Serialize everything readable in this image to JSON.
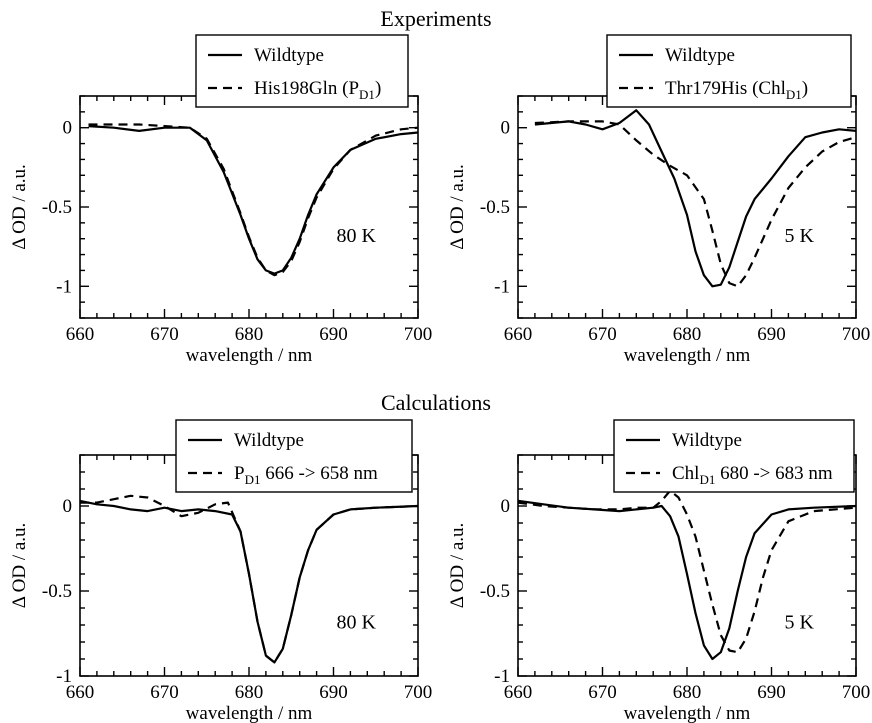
{
  "figure": {
    "section_titles": [
      "Experiments",
      "Calculations"
    ]
  },
  "chart_data": [
    {
      "type": "line",
      "panel": "top-left",
      "xlabel": "wavelength / nm",
      "ylabel": "Δ OD / a.u.",
      "xlim": [
        660,
        700
      ],
      "ylim": [
        -1.2,
        0.2
      ],
      "xticks": [
        660,
        670,
        680,
        690,
        700
      ],
      "yticks": [
        0,
        -0.5,
        -1
      ],
      "ytick_labels": [
        "0",
        "-0.5",
        "-1"
      ],
      "annotation": "80 K",
      "legend_position": "top-center",
      "series": [
        {
          "name": "Wildtype",
          "style": "solid",
          "x": [
            661,
            664,
            667,
            670,
            673,
            675,
            677,
            679,
            680,
            681,
            682,
            683,
            684,
            685,
            686,
            687,
            688,
            690,
            692,
            695,
            698,
            700
          ],
          "y": [
            0.01,
            0.0,
            -0.02,
            0.0,
            0.0,
            -0.08,
            -0.28,
            -0.55,
            -0.7,
            -0.83,
            -0.9,
            -0.92,
            -0.9,
            -0.82,
            -0.7,
            -0.55,
            -0.42,
            -0.25,
            -0.14,
            -0.07,
            -0.04,
            -0.03
          ]
        },
        {
          "name": "His198Gln (P",
          "name_sub": "D1",
          "name_suffix": ")",
          "style": "dashed",
          "x": [
            661,
            664,
            667,
            670,
            673,
            675,
            677,
            679,
            680,
            681,
            682,
            683,
            684,
            685,
            686,
            687,
            688,
            690,
            692,
            695,
            698,
            700
          ],
          "y": [
            0.02,
            0.02,
            0.02,
            0.01,
            0.0,
            -0.07,
            -0.26,
            -0.54,
            -0.69,
            -0.82,
            -0.9,
            -0.93,
            -0.91,
            -0.84,
            -0.72,
            -0.57,
            -0.44,
            -0.26,
            -0.14,
            -0.05,
            -0.01,
            0.0
          ]
        }
      ]
    },
    {
      "type": "line",
      "panel": "top-right",
      "xlabel": "wavelength / nm",
      "ylabel": "Δ OD / a.u.",
      "xlim": [
        660,
        700
      ],
      "ylim": [
        -1.2,
        0.2
      ],
      "xticks": [
        660,
        670,
        680,
        690,
        700
      ],
      "yticks": [
        0,
        -0.5,
        -1
      ],
      "ytick_labels": [
        "0",
        "-0.5",
        "-1"
      ],
      "annotation": "5 K",
      "legend_position": "top-center",
      "series": [
        {
          "name": "Wildtype",
          "style": "solid",
          "x": [
            662,
            666,
            668,
            670,
            672,
            674,
            675.5,
            677,
            678.5,
            680,
            681,
            682,
            683,
            684,
            685,
            686,
            687,
            688,
            690,
            692,
            694,
            696,
            698,
            700
          ],
          "y": [
            0.02,
            0.04,
            0.02,
            -0.01,
            0.03,
            0.11,
            0.02,
            -0.15,
            -0.32,
            -0.55,
            -0.78,
            -0.93,
            -1.0,
            -0.99,
            -0.88,
            -0.72,
            -0.56,
            -0.45,
            -0.32,
            -0.18,
            -0.06,
            -0.03,
            -0.01,
            -0.02
          ]
        },
        {
          "name": "Thr179His (Chl",
          "name_sub": "D1",
          "name_suffix": ")",
          "style": "dashed",
          "x": [
            662,
            666,
            670,
            672,
            674,
            676,
            678,
            680,
            682,
            683,
            684,
            685,
            686,
            687,
            688,
            690,
            692,
            694,
            696,
            698,
            700
          ],
          "y": [
            0.03,
            0.04,
            0.04,
            0.02,
            -0.08,
            -0.17,
            -0.24,
            -0.3,
            -0.45,
            -0.65,
            -0.86,
            -0.98,
            -1.0,
            -0.93,
            -0.82,
            -0.58,
            -0.38,
            -0.25,
            -0.15,
            -0.09,
            -0.06
          ]
        }
      ]
    },
    {
      "type": "line",
      "panel": "bottom-left",
      "xlabel": "wavelength / nm",
      "ylabel": "Δ OD / a.u.",
      "xlim": [
        660,
        700
      ],
      "ylim": [
        -1.0,
        0.3
      ],
      "xticks": [
        660,
        670,
        680,
        690,
        700
      ],
      "yticks": [
        0,
        -0.5,
        -1
      ],
      "ytick_labels": [
        "0",
        "-0.5",
        "-1"
      ],
      "annotation": "80 K",
      "legend_position": "top-right",
      "series": [
        {
          "name": "Wildtype",
          "style": "solid",
          "x": [
            660,
            662,
            664,
            666,
            668,
            670,
            672,
            674,
            676,
            678,
            679,
            680,
            681,
            682,
            683,
            684,
            685,
            686,
            687,
            688,
            690,
            692,
            695,
            700
          ],
          "y": [
            0.03,
            0.01,
            0.0,
            -0.02,
            -0.03,
            -0.01,
            -0.03,
            -0.02,
            -0.03,
            -0.05,
            -0.15,
            -0.4,
            -0.68,
            -0.88,
            -0.92,
            -0.84,
            -0.64,
            -0.42,
            -0.26,
            -0.14,
            -0.05,
            -0.02,
            -0.01,
            0.0
          ]
        },
        {
          "name": "P",
          "name_sub": "D1",
          "name_suffix": "  666 -> 658 nm",
          "style": "dashed",
          "x": [
            660,
            662,
            664,
            666,
            668,
            670,
            672,
            674,
            676,
            677.5,
            679,
            680,
            681,
            682,
            683,
            684,
            685,
            686,
            687,
            688,
            690,
            692,
            695,
            700
          ],
          "y": [
            0.02,
            0.02,
            0.04,
            0.06,
            0.05,
            0.0,
            -0.06,
            -0.04,
            0.01,
            0.02,
            -0.15,
            -0.4,
            -0.68,
            -0.88,
            -0.92,
            -0.84,
            -0.64,
            -0.42,
            -0.26,
            -0.14,
            -0.05,
            -0.02,
            -0.01,
            0.0
          ]
        }
      ]
    },
    {
      "type": "line",
      "panel": "bottom-right",
      "xlabel": "wavelength / nm",
      "ylabel": "Δ OD / a.u.",
      "xlim": [
        660,
        700
      ],
      "ylim": [
        -1.0,
        0.3
      ],
      "xticks": [
        660,
        670,
        680,
        690,
        700
      ],
      "yticks": [
        0,
        -0.5,
        -1
      ],
      "ytick_labels": [
        "0",
        "-0.5",
        "-1"
      ],
      "annotation": "5 K",
      "legend_position": "top-right",
      "series": [
        {
          "name": "Wildtype",
          "style": "solid",
          "x": [
            660,
            663,
            666,
            669,
            672,
            674,
            676,
            677,
            678,
            679,
            680,
            681,
            682,
            683,
            684,
            685,
            686,
            687,
            688,
            690,
            692,
            695,
            700
          ],
          "y": [
            0.03,
            0.01,
            -0.01,
            -0.02,
            -0.03,
            -0.02,
            -0.01,
            0.0,
            -0.06,
            -0.18,
            -0.4,
            -0.63,
            -0.82,
            -0.9,
            -0.86,
            -0.72,
            -0.5,
            -0.3,
            -0.16,
            -0.05,
            -0.02,
            -0.01,
            0.0
          ]
        },
        {
          "name": "Chl",
          "name_sub": "D1",
          "name_suffix": " 680 -> 683 nm",
          "style": "dashed",
          "x": [
            660,
            663,
            666,
            669,
            672,
            674,
            676,
            677,
            678,
            679,
            680,
            681,
            682,
            683,
            684,
            685,
            686,
            687,
            688,
            689,
            690,
            692,
            695,
            700
          ],
          "y": [
            0.02,
            0.0,
            -0.01,
            -0.02,
            -0.02,
            -0.01,
            -0.01,
            0.03,
            0.09,
            0.05,
            -0.05,
            -0.18,
            -0.38,
            -0.58,
            -0.76,
            -0.85,
            -0.86,
            -0.78,
            -0.62,
            -0.42,
            -0.26,
            -0.09,
            -0.03,
            -0.01
          ]
        }
      ]
    }
  ]
}
